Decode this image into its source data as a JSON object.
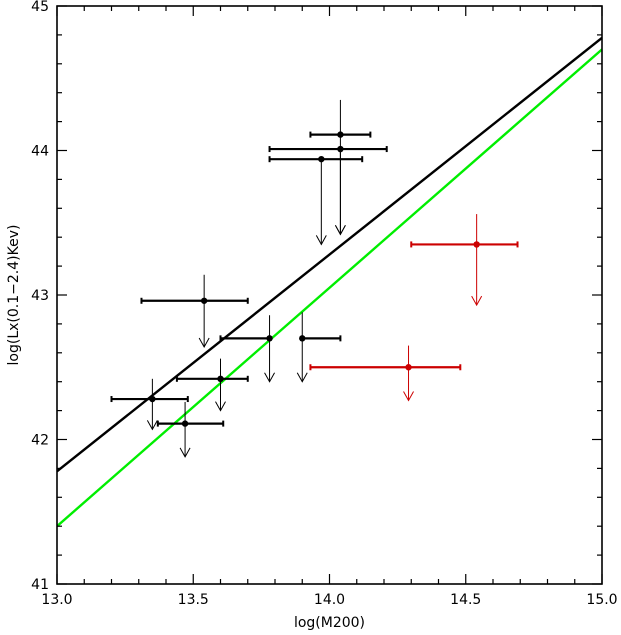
{
  "chart_data": {
    "type": "scatter",
    "xlabel": "log(M200)",
    "ylabel": "log(Lx(0.1−2.4)Kev)",
    "xlim": [
      13.0,
      15.0
    ],
    "ylim": [
      41.0,
      45.0
    ],
    "x_ticks": [
      "13.0",
      "13.5",
      "14.0",
      "14.5",
      "15.0"
    ],
    "y_ticks": [
      "41",
      "42",
      "43",
      "44",
      "45"
    ],
    "x_tick_values": [
      13.0,
      13.5,
      14.0,
      14.5,
      15.0
    ],
    "y_tick_values": [
      41,
      42,
      43,
      44,
      45
    ],
    "x_minor_step": 0.1,
    "y_minor_step": 0.2,
    "grid": false,
    "colors": {
      "black_series": "#000000",
      "red_series": "#cc0000",
      "fit_black": "#000000",
      "fit_green": "#00ee00"
    },
    "lines": [
      {
        "color": "#000000",
        "x": [
          13.0,
          15.0
        ],
        "y": [
          41.78,
          44.78
        ]
      },
      {
        "color": "#00ee00",
        "x": [
          13.0,
          15.0
        ],
        "y": [
          41.4,
          44.7
        ]
      }
    ],
    "series": [
      {
        "color": "#000000",
        "points": [
          {
            "x": 14.04,
            "y": 44.11,
            "xerr": [
              0.11,
              0.11
            ],
            "yerr_up": 0.24,
            "upper_limit_to": 43.42
          },
          {
            "x": 14.04,
            "y": 44.01,
            "xerr": [
              0.26,
              0.17
            ],
            "yerr_up": 0.0,
            "upper_limit_to": 43.42
          },
          {
            "x": 13.97,
            "y": 43.94,
            "xerr": [
              0.19,
              0.15
            ],
            "yerr_up": 0.0,
            "upper_limit_to": 43.35
          },
          {
            "x": 13.54,
            "y": 42.96,
            "xerr": [
              0.23,
              0.16
            ],
            "yerr_up": 0.18,
            "upper_limit_to": 42.64
          },
          {
            "x": 13.78,
            "y": 42.7,
            "xerr": [
              0.18,
              0.0
            ],
            "yerr_up": 0.16,
            "upper_limit_to": 42.4
          },
          {
            "x": 13.9,
            "y": 42.7,
            "xerr": [
              0.0,
              0.14
            ],
            "yerr_up": 0.18,
            "upper_limit_to": 42.4
          },
          {
            "x": 13.6,
            "y": 42.42,
            "xerr": [
              0.16,
              0.1
            ],
            "yerr_up": 0.14,
            "upper_limit_to": 42.2
          },
          {
            "x": 13.35,
            "y": 42.28,
            "xerr": [
              0.15,
              0.13
            ],
            "yerr_up": 0.14,
            "upper_limit_to": 42.07
          },
          {
            "x": 13.47,
            "y": 42.11,
            "xerr": [
              0.1,
              0.14
            ],
            "yerr_up": 0.15,
            "upper_limit_to": 41.88
          }
        ]
      },
      {
        "color": "#cc0000",
        "points": [
          {
            "x": 14.54,
            "y": 43.35,
            "xerr": [
              0.24,
              0.15
            ],
            "yerr_up": 0.21,
            "upper_limit_to": 42.93
          },
          {
            "x": 14.29,
            "y": 42.5,
            "xerr": [
              0.36,
              0.19
            ],
            "yerr_up": 0.15,
            "upper_limit_to": 42.27
          }
        ]
      }
    ]
  }
}
